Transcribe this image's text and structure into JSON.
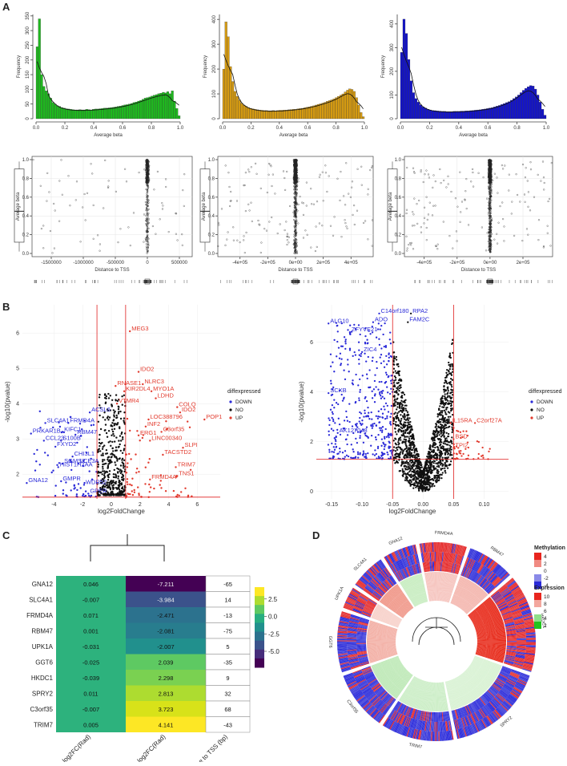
{
  "panels": {
    "A": {
      "letter": "A",
      "histograms": [
        {
          "color": "#1fb81f",
          "xlabel": "Average beta",
          "ylabel": "Frequency",
          "x_ticks": [
            "0.0",
            "0.2",
            "0.4",
            "0.6",
            "0.8",
            "1.0"
          ],
          "y_ticks": [
            "0",
            "50",
            "100",
            "150",
            "200",
            "250",
            "300",
            "350"
          ],
          "ylim": [
            0,
            355
          ],
          "values": [
            245,
            340,
            150,
            110,
            95,
            85,
            70,
            55,
            50,
            44,
            42,
            38,
            36,
            34,
            33,
            32,
            31,
            30,
            30,
            31,
            30,
            30,
            32,
            31,
            30,
            32,
            33,
            33,
            34,
            35,
            36,
            36,
            37,
            38,
            39,
            40,
            42,
            43,
            45,
            47,
            48,
            50,
            52,
            55,
            57,
            60,
            62,
            66,
            70,
            72,
            74,
            77,
            80,
            82,
            85,
            87,
            90,
            88,
            92,
            85,
            95,
            60,
            35,
            10
          ]
        },
        {
          "color": "#d49a12",
          "xlabel": "Average beta",
          "ylabel": "Frequency",
          "x_ticks": [
            "0.0",
            "0.2",
            "0.4",
            "0.6",
            "0.8",
            "1.0"
          ],
          "y_ticks": [
            "0",
            "100",
            "200",
            "300",
            "400"
          ],
          "ylim": [
            0,
            420
          ],
          "values": [
            200,
            390,
            330,
            210,
            150,
            110,
            90,
            75,
            62,
            55,
            50,
            45,
            42,
            40,
            38,
            36,
            35,
            34,
            33,
            33,
            32,
            32,
            33,
            32,
            33,
            34,
            34,
            35,
            35,
            36,
            37,
            38,
            38,
            40,
            41,
            42,
            44,
            46,
            48,
            50,
            52,
            55,
            58,
            60,
            63,
            66,
            70,
            73,
            76,
            80,
            85,
            90,
            95,
            100,
            108,
            115,
            120,
            118,
            110,
            85,
            55,
            25,
            8
          ]
        },
        {
          "color": "#1414c8",
          "xlabel": "Average beta",
          "ylabel": "Frequency",
          "x_ticks": [
            "0.0",
            "0.2",
            "0.4",
            "0.6",
            "0.8",
            "1.0"
          ],
          "y_ticks": [
            "0",
            "100",
            "200",
            "300",
            "400"
          ],
          "ylim": [
            0,
            440
          ],
          "values": [
            280,
            420,
            360,
            250,
            160,
            110,
            85,
            70,
            58,
            50,
            45,
            40,
            37,
            35,
            34,
            33,
            32,
            31,
            31,
            30,
            30,
            30,
            31,
            31,
            31,
            32,
            32,
            33,
            33,
            34,
            35,
            36,
            37,
            38,
            40,
            41,
            43,
            45,
            47,
            50,
            53,
            56,
            60,
            64,
            68,
            72,
            78,
            85,
            92,
            100,
            110,
            120,
            128,
            135,
            140,
            138,
            125,
            100,
            70,
            40,
            15
          ]
        }
      ],
      "scatters": [
        {
          "xlabel": "Distance to TSS",
          "ylabel": "Average beta",
          "x_ticks": [
            "-1500000",
            "-1000000",
            "-500000",
            "0",
            "500000"
          ],
          "xlim": [
            -1800000,
            700000
          ],
          "y_ticks": [
            "0.0",
            "0.2",
            "0.4",
            "0.6",
            "0.8",
            "1.0"
          ],
          "density": 1,
          "seed": 7
        },
        {
          "xlabel": "Distance to TSS",
          "ylabel": "Average beta",
          "x_ticks": [
            "-4e+05",
            "-2e+05",
            "0e+00",
            "2e+05",
            "4e+05"
          ],
          "xlim": [
            -560000,
            560000
          ],
          "y_ticks": [
            "0.0",
            "0.2",
            "0.4",
            "0.6",
            "0.8",
            "1.0"
          ],
          "density": 2,
          "seed": 13
        },
        {
          "xlabel": "Distance to TSS",
          "ylabel": "Average beta",
          "x_ticks": [
            "-4e+05",
            "-2e+05",
            "0e+00",
            "2e+05"
          ],
          "xlim": [
            -520000,
            380000
          ],
          "y_ticks": [
            "0.0",
            "0.2",
            "0.4",
            "0.6",
            "0.8",
            "1.0"
          ],
          "density": 2,
          "seed": 29
        }
      ]
    },
    "B": {
      "letter": "B",
      "left": {
        "xlabel": "log2FoldChange",
        "ylabel": "-log10(pvalue)",
        "x_ticks": [
          "-4",
          "-2",
          "0",
          "2",
          "4",
          "6"
        ],
        "xlim": [
          -6.2,
          7.6
        ],
        "y_ticks": [
          "2",
          "3",
          "4",
          "5",
          "6"
        ],
        "ylim": [
          1.3,
          6.8
        ],
        "vlines": [
          -1,
          1
        ],
        "hline": 1.35,
        "genes_down": [
          {
            "label": "SLC4A1",
            "x": -4.6,
            "y": 3.45
          },
          {
            "label": "FRMD4A",
            "x": -3.0,
            "y": 3.45
          },
          {
            "label": "ACSL6",
            "x": -1.5,
            "y": 3.75
          },
          {
            "label": "PRKAR1B",
            "x": -5.6,
            "y": 3.15
          },
          {
            "label": "KIFC1",
            "x": -3.4,
            "y": 3.2
          },
          {
            "label": "RBM47",
            "x": -2.5,
            "y": 3.12
          },
          {
            "label": "CCL23",
            "x": -4.7,
            "y": 2.95
          },
          {
            "label": "S100B",
            "x": -3.5,
            "y": 2.95
          },
          {
            "label": "FXYD2",
            "x": -3.9,
            "y": 2.78
          },
          {
            "label": "HIST1H2AA",
            "x": -3.7,
            "y": 2.2
          },
          {
            "label": "CHI3L1",
            "x": -2.7,
            "y": 2.5
          },
          {
            "label": "SGMS2",
            "x": -3.4,
            "y": 2.3
          },
          {
            "label": "LCE3A",
            "x": -2.3,
            "y": 2.3
          },
          {
            "label": "GNA12",
            "x": -5.9,
            "y": 1.75
          },
          {
            "label": "GMPR",
            "x": -3.5,
            "y": 1.8
          },
          {
            "label": "WDR52",
            "x": -1.9,
            "y": 1.7
          },
          {
            "label": "GPER",
            "x": -1.6,
            "y": 1.45
          }
        ],
        "genes_up": [
          {
            "label": "MEG3",
            "x": 1.3,
            "y": 6.05
          },
          {
            "label": "IDO2",
            "x": 1.9,
            "y": 4.9
          },
          {
            "label": "NLRC3",
            "x": 2.2,
            "y": 4.55
          },
          {
            "label": "RNASE1",
            "x": 0.3,
            "y": 4.5
          },
          {
            "label": "MYO1A",
            "x": 2.8,
            "y": 4.35
          },
          {
            "label": "KIR2DL4",
            "x": 0.9,
            "y": 4.35
          },
          {
            "label": "LDHD",
            "x": 3.1,
            "y": 4.15
          },
          {
            "label": "VTMR4",
            "x": 0.4,
            "y": 4.0
          },
          {
            "label": "COLQ",
            "x": 4.6,
            "y": 3.9
          },
          {
            "label": "IDO2",
            "x": 4.8,
            "y": 3.75
          },
          {
            "label": "LOC388796",
            "x": 2.6,
            "y": 3.55
          },
          {
            "label": "POP1",
            "x": 6.5,
            "y": 3.55
          },
          {
            "label": "INF2",
            "x": 2.4,
            "y": 3.35
          },
          {
            "label": "C3orf35",
            "x": 3.5,
            "y": 3.2
          },
          {
            "label": "ERG1",
            "x": 1.9,
            "y": 3.1
          },
          {
            "label": "LINC00340",
            "x": 2.7,
            "y": 2.95
          },
          {
            "label": "SLPI",
            "x": 5.0,
            "y": 2.75
          },
          {
            "label": "TACSTD2",
            "x": 3.6,
            "y": 2.55
          },
          {
            "label": "TRIM7",
            "x": 4.5,
            "y": 2.2
          },
          {
            "label": "TNS1",
            "x": 4.6,
            "y": 1.95
          },
          {
            "label": "FRMD4A",
            "x": 2.7,
            "y": 1.85
          }
        ],
        "legend": {
          "title": "diffexpressed",
          "items": [
            {
              "label": "DOWN",
              "color": "#2a2ad8"
            },
            {
              "label": "NO",
              "color": "#111111"
            },
            {
              "label": "UP",
              "color": "#e23b2e"
            }
          ]
        }
      },
      "right": {
        "xlabel": "log2FoldChange",
        "ylabel": "-log10(pvalue)",
        "x_ticks": [
          "-0.15",
          "-0.10",
          "-0.05",
          "0.00",
          "0.05",
          "0.10"
        ],
        "xlim": [
          -0.175,
          0.14
        ],
        "y_ticks": [
          "0",
          "2",
          "4",
          "6"
        ],
        "ylim": [
          -0.3,
          7.5
        ],
        "vlines": [
          -0.05,
          0.05
        ],
        "hline": 1.3,
        "genes_down": [
          {
            "label": "C14orf180",
            "x": -0.072,
            "y": 7.15
          },
          {
            "label": "ALG10",
            "x": -0.155,
            "y": 6.75
          },
          {
            "label": "ADO",
            "x": -0.082,
            "y": 6.8
          },
          {
            "label": "ZFYVE21",
            "x": -0.12,
            "y": 6.4
          },
          {
            "label": "ZIC4",
            "x": -0.1,
            "y": 5.6
          },
          {
            "label": "SCXB",
            "x": -0.155,
            "y": 3.95
          },
          {
            "label": "AK127048",
            "x": -0.14,
            "y": 2.35
          }
        ],
        "genes_up": [
          {
            "label": "IL15RA",
            "x": 0.045,
            "y": 2.75
          },
          {
            "label": "C2orf27A",
            "x": 0.085,
            "y": 2.75
          },
          {
            "label": "BSD",
            "x": 0.05,
            "y": 2.1
          },
          {
            "label": "TPI2",
            "x": 0.05,
            "y": 1.75
          }
        ],
        "genes_no": [
          {
            "label": "RPA2",
            "x": -0.02,
            "y": 7.15
          },
          {
            "label": "FAM2C",
            "x": -0.025,
            "y": 6.8
          }
        ],
        "legend": {
          "title": "diffexpressed",
          "items": [
            {
              "label": "DOWN",
              "color": "#2a2ad8"
            },
            {
              "label": "NO",
              "color": "#111111"
            },
            {
              "label": "UP",
              "color": "#e23b2e"
            }
          ]
        }
      }
    },
    "C": {
      "letter": "C",
      "genes": [
        "GNA12",
        "SLC4A1",
        "FRMD4A",
        "RBM47",
        "UPK1A",
        "GGT6",
        "HKDC1",
        "SPRY2",
        "C3orf35",
        "TRIM7"
      ],
      "gene_exp": [
        "0.046",
        "-0.007",
        "0.071",
        "0.001",
        "-0.031",
        "-0.025",
        "-0.039",
        "0.011",
        "-0.007",
        "0.005"
      ],
      "gene_exp_color": "#2db27d",
      "cpg": [
        "-7.211",
        "-3.984",
        "-2.471",
        "-2.081",
        "-2.007",
        "2.039",
        "2.298",
        "2.813",
        "3.723",
        "4.141"
      ],
      "cpg_colors": [
        "#440154",
        "#3b528b",
        "#2c728e",
        "#287d8e",
        "#21908d",
        "#5ec962",
        "#7ad151",
        "#addc30",
        "#d8e219",
        "#fde725"
      ],
      "distance": [
        "-65",
        "14",
        "-13",
        "-75",
        "5",
        "-35",
        "9",
        "32",
        "68",
        "-43"
      ],
      "col_labels": [
        "Gene Exp log2FC(Rad)",
        "CpG log2FC(Rad)",
        "Distance to TSS (bp)"
      ],
      "colorbar_ticks": [
        "2.5",
        "0.0",
        "-2.5",
        "-5.0"
      ]
    },
    "D": {
      "letter": "D",
      "gene_labels": [
        "FRMD4A",
        "RBM47",
        "HKDC1",
        "SPRY2",
        "TRIM7",
        "C3orf35",
        "GGT6",
        "UPK1A",
        "SLC4A1",
        "GNA12"
      ],
      "legend_methylation": {
        "title": "Methylation",
        "ticks": [
          "4",
          "2",
          "0",
          "-2",
          "-4"
        ]
      },
      "legend_expression": {
        "title": "Expression",
        "ticks": [
          "10",
          "8",
          "6",
          "4",
          "2"
        ]
      }
    }
  }
}
